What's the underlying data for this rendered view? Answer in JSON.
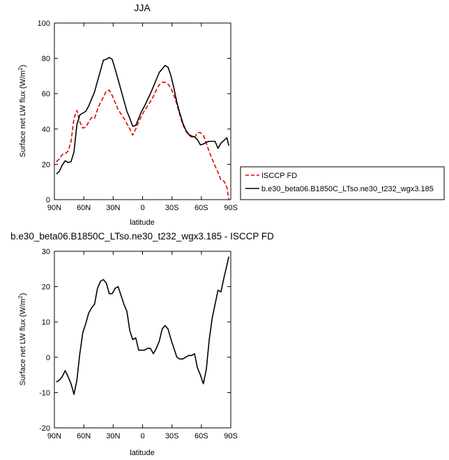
{
  "chart_data": [
    {
      "type": "line",
      "title": "JJA",
      "xlabel": "latitude",
      "ylabel_text": "Surface net LW flux (W/m",
      "ylabel_sup": "2",
      "ylabel_close": ")",
      "xlim": [
        90,
        -90
      ],
      "ylim": [
        0,
        100
      ],
      "x_ticks": [
        {
          "v": 90,
          "label": "90N"
        },
        {
          "v": 60,
          "label": "60N"
        },
        {
          "v": 30,
          "label": "30N"
        },
        {
          "v": 0,
          "label": "0"
        },
        {
          "v": -30,
          "label": "30S"
        },
        {
          "v": -60,
          "label": "60S"
        },
        {
          "v": -90,
          "label": "90S"
        }
      ],
      "y_ticks": [
        {
          "v": 0,
          "label": "0"
        },
        {
          "v": 20,
          "label": "20"
        },
        {
          "v": 40,
          "label": "40"
        },
        {
          "v": 60,
          "label": "60"
        },
        {
          "v": 80,
          "label": "80"
        },
        {
          "v": 100,
          "label": "100"
        }
      ],
      "legend": "outside-right",
      "series": [
        {
          "name": "ISCCP FD",
          "color": "#e00000",
          "dash": true,
          "x": [
            88,
            85,
            82,
            79,
            76,
            73,
            70,
            67,
            64,
            61,
            58,
            55,
            52,
            49,
            46,
            43,
            40,
            37,
            34,
            31,
            28,
            25,
            22,
            19,
            16,
            13,
            10,
            7,
            4,
            1,
            -2,
            -5,
            -8,
            -11,
            -14,
            -17,
            -20,
            -23,
            -26,
            -29,
            -32,
            -35,
            -38,
            -41,
            -44,
            -47,
            -50,
            -53,
            -56,
            -59,
            -62,
            -65,
            -68,
            -71,
            -74,
            -77,
            -80,
            -83,
            -86,
            -88
          ],
          "y": [
            21.5,
            23,
            25.5,
            26,
            27.5,
            33,
            46,
            50.5,
            44,
            40.5,
            41,
            44,
            46.5,
            46,
            51,
            55,
            58,
            61.5,
            62,
            59,
            55,
            51,
            48.5,
            46,
            43,
            40,
            36.5,
            40,
            44,
            47.5,
            50.5,
            53,
            55.5,
            58.5,
            62,
            65,
            66.5,
            66.5,
            65.5,
            63,
            59,
            54,
            48,
            42.5,
            39,
            36.5,
            35.5,
            35,
            38,
            38,
            36.5,
            32,
            27,
            23,
            19,
            15.5,
            11,
            10.5,
            7,
            0
          ]
        },
        {
          "name": "b.e30_beta06.B1850C_LTso.ne30_t232_wgx3.185",
          "color": "#000000",
          "dash": false,
          "x": [
            88,
            85,
            82,
            79,
            76,
            73,
            70,
            67,
            64,
            61,
            58,
            55,
            52,
            49,
            46,
            43,
            40,
            37,
            34,
            31,
            28,
            25,
            22,
            19,
            16,
            13,
            10,
            7,
            4,
            1,
            -2,
            -5,
            -8,
            -11,
            -14,
            -17,
            -20,
            -23,
            -26,
            -29,
            -32,
            -35,
            -38,
            -41,
            -44,
            -47,
            -50,
            -53,
            -56,
            -59,
            -62,
            -65,
            -68,
            -71,
            -74,
            -77,
            -80,
            -83,
            -86,
            -88
          ],
          "y": [
            14.5,
            16,
            19.5,
            22,
            21,
            21.5,
            27,
            42.5,
            48,
            49,
            50,
            53,
            57,
            61,
            67,
            73,
            79,
            79.5,
            80.5,
            79.5,
            74,
            68,
            62,
            56,
            50,
            46,
            41.5,
            42,
            46,
            50,
            53,
            56.5,
            60,
            64,
            68,
            72,
            74,
            76,
            75,
            70,
            63,
            55,
            49,
            43.5,
            39.5,
            37,
            36,
            35.5,
            34,
            31,
            31.5,
            32.5,
            33,
            33,
            33,
            29,
            32,
            33.5,
            35,
            30.5
          ]
        }
      ]
    },
    {
      "type": "line",
      "title": "b.e30_beta06.B1850C_LTso.ne30_t232_wgx3.185 - ISCCP FD",
      "xlabel": "latitude",
      "ylabel_text": "Surface net LW flux (W/m",
      "ylabel_sup": "2",
      "ylabel_close": ")",
      "xlim": [
        90,
        -90
      ],
      "ylim": [
        -20,
        30
      ],
      "x_ticks": [
        {
          "v": 90,
          "label": "90N"
        },
        {
          "v": 60,
          "label": "60N"
        },
        {
          "v": 30,
          "label": "30N"
        },
        {
          "v": 0,
          "label": "0"
        },
        {
          "v": -30,
          "label": "30S"
        },
        {
          "v": -60,
          "label": "60S"
        },
        {
          "v": -90,
          "label": "90S"
        }
      ],
      "y_ticks": [
        {
          "v": -20,
          "label": "-20"
        },
        {
          "v": -10,
          "label": "-10"
        },
        {
          "v": 0,
          "label": "0"
        },
        {
          "v": 10,
          "label": "10"
        },
        {
          "v": 20,
          "label": "20"
        },
        {
          "v": 30,
          "label": "30"
        }
      ],
      "series": [
        {
          "color": "#000000",
          "dash": false,
          "x": [
            88,
            85,
            82,
            79,
            76,
            73,
            70,
            67,
            64,
            61,
            58,
            55,
            52,
            49,
            46,
            43,
            40,
            37,
            34,
            31,
            28,
            25,
            22,
            19,
            16,
            13,
            10,
            7,
            4,
            1,
            -2,
            -5,
            -8,
            -11,
            -14,
            -17,
            -20,
            -23,
            -26,
            -29,
            -32,
            -35,
            -38,
            -41,
            -44,
            -47,
            -50,
            -53,
            -56,
            -59,
            -62,
            -65,
            -68,
            -71,
            -74,
            -77,
            -80,
            -83,
            -86,
            -88
          ],
          "y": [
            -7,
            -6.5,
            -5.5,
            -3.8,
            -5.5,
            -7.5,
            -10.5,
            -6.5,
            1,
            7,
            9.5,
            12.5,
            14,
            15,
            19.5,
            21.5,
            22,
            21,
            18,
            18,
            19.5,
            20,
            17.5,
            15,
            13,
            7.5,
            5,
            5.5,
            2,
            2,
            2,
            2.5,
            2.5,
            1,
            2.5,
            4.5,
            8,
            9,
            8,
            5,
            2.5,
            0,
            -0.5,
            -0.5,
            0,
            0.5,
            0.5,
            1,
            -3,
            -5,
            -7.5,
            -3.5,
            5,
            11,
            15,
            19,
            18.5,
            22.5,
            26,
            28.5
          ]
        }
      ]
    }
  ]
}
